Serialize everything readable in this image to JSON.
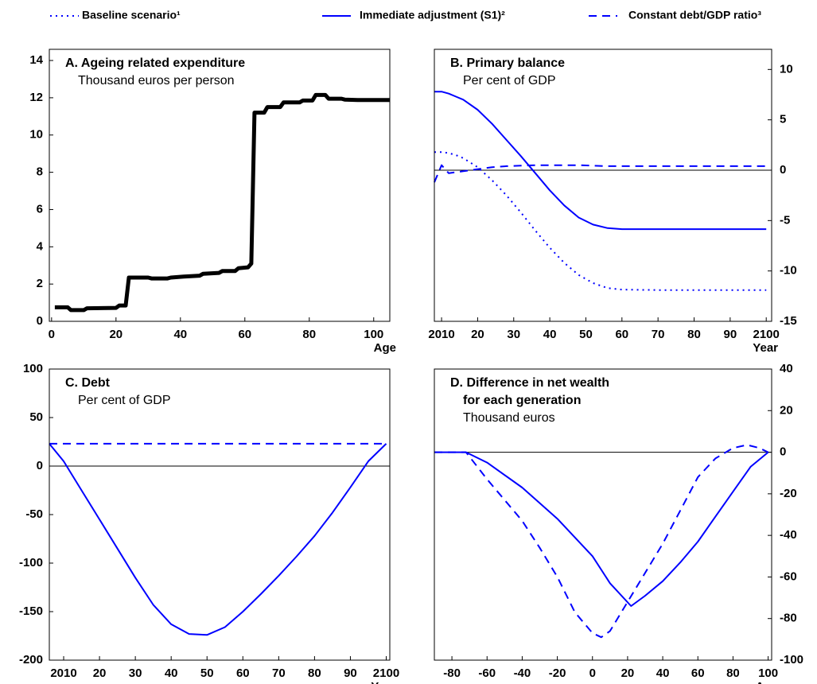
{
  "chart_data": [
    {
      "type": "line",
      "title": "A. Ageing related expenditure",
      "subtitle": "Thousand euros per person",
      "x_label": "Age",
      "xlim": [
        -0.7,
        105
      ],
      "ylim": [
        0,
        14.6
      ],
      "xticks": [
        0,
        20,
        40,
        60,
        80,
        100
      ],
      "yticks": [
        0,
        2,
        4,
        6,
        8,
        10,
        12,
        14
      ],
      "y_axis_side": "left",
      "series": [
        {
          "color": "#000000",
          "dash": "solid",
          "width": 5,
          "x": [
            1,
            5,
            6,
            10,
            11,
            20,
            21,
            23,
            24,
            30,
            31,
            36,
            37,
            41,
            46,
            47,
            52,
            53,
            57,
            58,
            61,
            62,
            63,
            66,
            67,
            71,
            72,
            77,
            78,
            81,
            82,
            85,
            86,
            90,
            91,
            95,
            105
          ],
          "values": [
            0.75,
            0.75,
            0.6,
            0.6,
            0.7,
            0.72,
            0.85,
            0.85,
            2.35,
            2.35,
            2.3,
            2.3,
            2.35,
            2.4,
            2.45,
            2.55,
            2.6,
            2.7,
            2.7,
            2.85,
            2.9,
            3.1,
            11.2,
            11.2,
            11.5,
            11.5,
            11.75,
            11.75,
            11.85,
            11.85,
            12.15,
            12.15,
            11.95,
            11.95,
            11.9,
            11.88,
            11.88
          ]
        }
      ]
    },
    {
      "type": "line",
      "title": "B. Primary balance",
      "subtitle": "Per cent of GDP",
      "x_label": "Year",
      "xlim": [
        2008,
        2101.5
      ],
      "ylim": [
        -15,
        12
      ],
      "xticks": [
        {
          "value": 2010,
          "label": "2010"
        },
        {
          "value": 2020,
          "label": "20"
        },
        {
          "value": 2030,
          "label": "30"
        },
        {
          "value": 2040,
          "label": "40"
        },
        {
          "value": 2050,
          "label": "50"
        },
        {
          "value": 2060,
          "label": "60"
        },
        {
          "value": 2070,
          "label": "70"
        },
        {
          "value": 2080,
          "label": "80"
        },
        {
          "value": 2090,
          "label": "90"
        },
        {
          "value": 2100,
          "label": "2100"
        }
      ],
      "yticks": [
        -15,
        -10,
        -5,
        0,
        5,
        10
      ],
      "y_axis_side": "right",
      "series": [
        {
          "name": "Baseline scenario¹",
          "color": "#0000ff",
          "dash": "dotted",
          "width": 2,
          "x": [
            2008,
            2010,
            2012,
            2014,
            2016,
            2020,
            2024,
            2028,
            2032,
            2036,
            2040,
            2044,
            2048,
            2052,
            2056,
            2060,
            2070,
            2080,
            2090,
            2100
          ],
          "values": [
            1.8,
            1.8,
            1.7,
            1.5,
            1.2,
            0.3,
            -1,
            -2.5,
            -4.2,
            -6,
            -7.7,
            -9.2,
            -10.4,
            -11.2,
            -11.7,
            -11.85,
            -11.9,
            -11.9,
            -11.9,
            -11.9
          ]
        },
        {
          "name": "Immediate adjustment (S1)²",
          "color": "#0000ff",
          "dash": "solid",
          "width": 2,
          "x": [
            2008,
            2010,
            2012,
            2014,
            2016,
            2020,
            2024,
            2028,
            2032,
            2036,
            2040,
            2044,
            2048,
            2052,
            2056,
            2060,
            2070,
            2080,
            2090,
            2100
          ],
          "values": [
            7.8,
            7.8,
            7.6,
            7.3,
            7,
            6,
            4.6,
            3,
            1.4,
            -0.3,
            -2,
            -3.5,
            -4.7,
            -5.4,
            -5.75,
            -5.85,
            -5.85,
            -5.85,
            -5.85,
            -5.85
          ]
        },
        {
          "name": "Constant debt/GDP ratio³",
          "color": "#0000ff",
          "dash": "dashed",
          "width": 2,
          "x": [
            2008,
            2010,
            2012,
            2014,
            2016,
            2020,
            2024,
            2028,
            2032,
            2036,
            2040,
            2044,
            2048,
            2052,
            2056,
            2060,
            2070,
            2080,
            2090,
            2100
          ],
          "values": [
            -1.2,
            0.5,
            -0.3,
            -0.2,
            -0.1,
            0.1,
            0.3,
            0.4,
            0.45,
            0.5,
            0.5,
            0.5,
            0.5,
            0.45,
            0.4,
            0.4,
            0.4,
            0.4,
            0.4,
            0.4
          ]
        }
      ]
    },
    {
      "type": "line",
      "title": "C. Debt",
      "subtitle": "Per cent of GDP",
      "x_label": "Year",
      "xlim": [
        2006,
        2101
      ],
      "ylim": [
        -200,
        100
      ],
      "xticks": [
        {
          "value": 2010,
          "label": "2010"
        },
        {
          "value": 2020,
          "label": "20"
        },
        {
          "value": 2030,
          "label": "30"
        },
        {
          "value": 2040,
          "label": "40"
        },
        {
          "value": 2050,
          "label": "50"
        },
        {
          "value": 2060,
          "label": "60"
        },
        {
          "value": 2070,
          "label": "70"
        },
        {
          "value": 2080,
          "label": "80"
        },
        {
          "value": 2090,
          "label": "90"
        },
        {
          "value": 2100,
          "label": "2100"
        }
      ],
      "yticks": [
        -200,
        -150,
        -100,
        -50,
        0,
        50,
        100
      ],
      "y_axis_side": "left",
      "series": [
        {
          "color": "#0000ff",
          "dash": "solid",
          "width": 2,
          "x": [
            2006,
            2010,
            2015,
            2020,
            2025,
            2030,
            2035,
            2040,
            2045,
            2050,
            2055,
            2060,
            2065,
            2070,
            2075,
            2080,
            2085,
            2090,
            2095,
            2100
          ],
          "values": [
            23,
            5,
            -25,
            -55,
            -85,
            -115,
            -143,
            -163,
            -173,
            -174,
            -166,
            -150,
            -132,
            -113,
            -93,
            -72,
            -48,
            -22,
            5,
            23
          ]
        },
        {
          "color": "#0000ff",
          "dash": "dashed",
          "width": 2,
          "x": [
            2006,
            2100
          ],
          "values": [
            23,
            23
          ]
        }
      ]
    },
    {
      "type": "line",
      "title": [
        "D. Difference in net wealth",
        "for each generation"
      ],
      "subtitle": "Thousand euros",
      "x_label": "Age",
      "xlim": [
        -90,
        102
      ],
      "ylim": [
        -100,
        40
      ],
      "xticks": [
        -80,
        -60,
        -40,
        -20,
        0,
        20,
        40,
        60,
        80,
        100
      ],
      "yticks": [
        -100,
        -80,
        -60,
        -40,
        -20,
        0,
        20,
        40
      ],
      "y_axis_side": "right",
      "series": [
        {
          "color": "#0000ff",
          "dash": "solid",
          "width": 2,
          "x": [
            -90,
            -72,
            -60,
            -40,
            -20,
            0,
            10,
            22,
            30,
            40,
            50,
            60,
            70,
            80,
            90,
            100
          ],
          "values": [
            0,
            0,
            -5,
            -17,
            -32,
            -50,
            -63,
            -74,
            -69,
            -62,
            -53,
            -43,
            -31,
            -19,
            -7,
            0
          ]
        },
        {
          "color": "#0000ff",
          "dash": "dashed",
          "width": 2,
          "x": [
            -90,
            -72,
            -60,
            -40,
            -30,
            -20,
            -10,
            0,
            5,
            10,
            20,
            30,
            40,
            50,
            60,
            70,
            80,
            88,
            95,
            100
          ],
          "values": [
            0,
            0,
            -13,
            -33,
            -46,
            -60,
            -77,
            -87,
            -89,
            -86,
            -72,
            -58,
            -44,
            -28,
            -12,
            -3,
            2,
            3.5,
            2,
            0
          ]
        }
      ]
    }
  ]
}
